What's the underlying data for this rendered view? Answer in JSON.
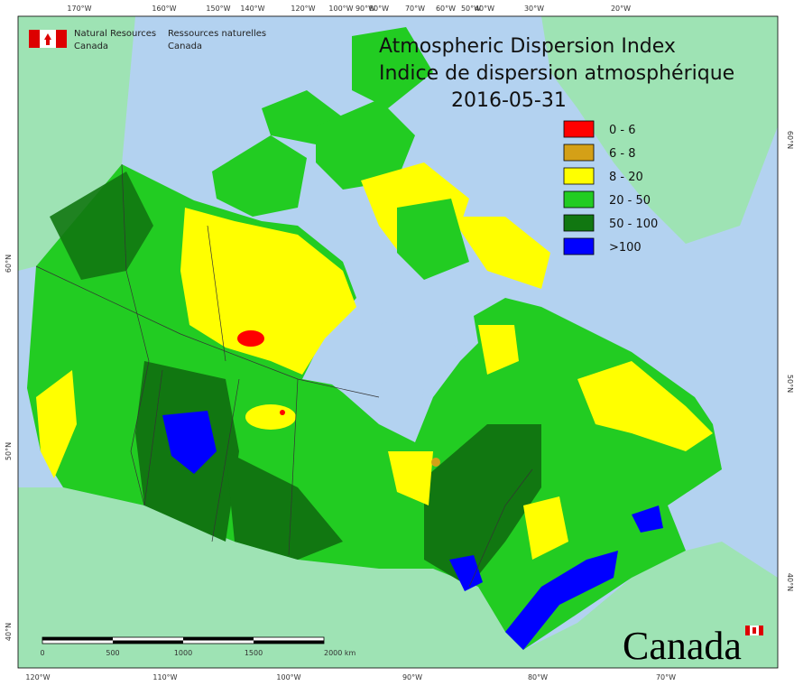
{
  "header": {
    "agency_en": [
      "Natural Resources",
      "Canada"
    ],
    "agency_fr": [
      "Ressources naturelles",
      "Canada"
    ]
  },
  "title": {
    "line1": "Atmospheric Dispersion Index",
    "line2": "Indice de dispersion atmosphérique",
    "date": "2016-05-31"
  },
  "legend": {
    "items": [
      {
        "label": "0 - 6",
        "color": "#ff0000"
      },
      {
        "label": "6 - 8",
        "color": "#d4a017"
      },
      {
        "label": "8 - 20",
        "color": "#ffff00"
      },
      {
        "label": "20 - 50",
        "color": "#22cc22"
      },
      {
        "label": "50 - 100",
        "color": "#117711"
      },
      {
        "label": ">100",
        "color": "#0000ff"
      }
    ]
  },
  "graticule": {
    "top": [
      "170°W",
      "160°W",
      "150°W",
      "140°W",
      "120°W",
      "100°W",
      "90°W",
      "80°W",
      "70°W",
      "60°W",
      "50°W",
      "40°W",
      "30°W",
      "20°W"
    ],
    "bottom": [
      "120°W",
      "110°W",
      "100°W",
      "90°W",
      "80°W",
      "70°W"
    ],
    "left": [
      "60°N",
      "50°N",
      "40°N"
    ],
    "right": [
      "60°N",
      "50°N",
      "40°N"
    ]
  },
  "scale_bar": {
    "labels": [
      "0",
      "500",
      "1000",
      "1500",
      "2000 km"
    ]
  },
  "wordmark": "Canada"
}
